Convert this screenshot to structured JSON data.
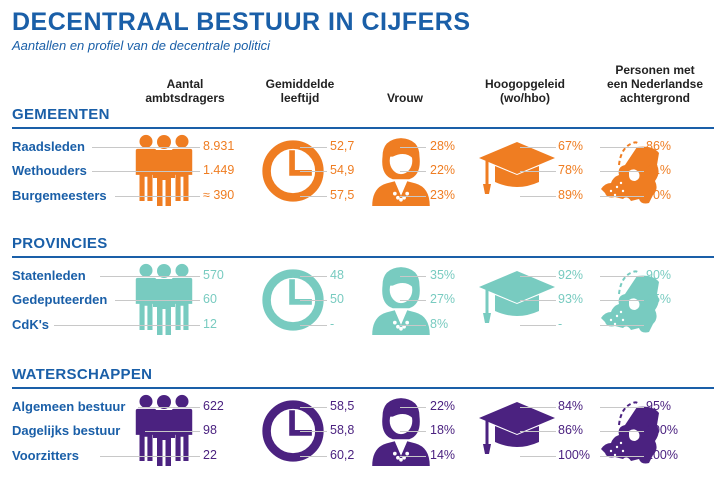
{
  "title": "DECENTRAAL BESTUUR IN CIJFERS",
  "subtitle": "Aantallen en profiel van de decentrale politici",
  "columns": [
    {
      "key": "aantal",
      "label1": "Aantal",
      "label2": "ambtsdragers",
      "label3": ""
    },
    {
      "key": "leeftijd",
      "label1": "Gemiddelde",
      "label2": "leeftijd",
      "label3": ""
    },
    {
      "key": "vrouw",
      "label1": "Vrouw",
      "label2": "",
      "label3": ""
    },
    {
      "key": "hoog",
      "label1": "Hoogopgeleid",
      "label2": "(wo/hbo)",
      "label3": ""
    },
    {
      "key": "nl",
      "label1": "Personen met",
      "label2": "een Nederlandse",
      "label3": "achtergrond"
    }
  ],
  "colors": {
    "title": "#1a5fa8",
    "gemeenten": "#ef7d22",
    "provincies": "#78cbc0",
    "waterschappen": "#4b2280"
  },
  "icons": [
    "people-icon",
    "clock-icon",
    "woman-icon",
    "graduation-cap-icon",
    "netherlands-map-icon"
  ],
  "sections": [
    {
      "name": "GEMEENTEN",
      "color": "#ef7d22",
      "rows": [
        {
          "label": "Raadsleden",
          "aantal": "8.931",
          "leeftijd": "52,7",
          "vrouw": "28%",
          "hoog": "67%",
          "nl": "86%"
        },
        {
          "label": "Wethouders",
          "aantal": "1.449",
          "leeftijd": "54,9",
          "vrouw": "22%",
          "hoog": "78%",
          "nl": "91%"
        },
        {
          "label": "Burgemeesters",
          "aantal": "≈ 390",
          "leeftijd": "57,5",
          "vrouw": "23%",
          "hoog": "89%",
          "nl": "90%"
        }
      ]
    },
    {
      "name": "PROVINCIES",
      "color": "#78cbc0",
      "rows": [
        {
          "label": "Statenleden",
          "aantal": "570",
          "leeftijd": "48",
          "vrouw": "35%",
          "hoog": "92%",
          "nl": "90%"
        },
        {
          "label": "Gedeputeerden",
          "aantal": "60",
          "leeftijd": "50",
          "vrouw": "27%",
          "hoog": "93%",
          "nl": "95%"
        },
        {
          "label": "CdK's",
          "aantal": "12",
          "leeftijd": "-",
          "vrouw": "8%",
          "hoog": "-",
          "nl": "-"
        }
      ]
    },
    {
      "name": "WATERSCHAPPEN",
      "color": "#4b2280",
      "rows": [
        {
          "label": "Algemeen bestuur",
          "aantal": "622",
          "leeftijd": "58,5",
          "vrouw": "22%",
          "hoog": "84%",
          "nl": "95%"
        },
        {
          "label": "Dagelijks bestuur",
          "aantal": "98",
          "leeftijd": "58,8",
          "vrouw": "18%",
          "hoog": "86%",
          "nl": "100%"
        },
        {
          "label": "Voorzitters",
          "aantal": "22",
          "leeftijd": "60,2",
          "vrouw": "14%",
          "hoog": "100%",
          "nl": "100%"
        }
      ]
    }
  ]
}
